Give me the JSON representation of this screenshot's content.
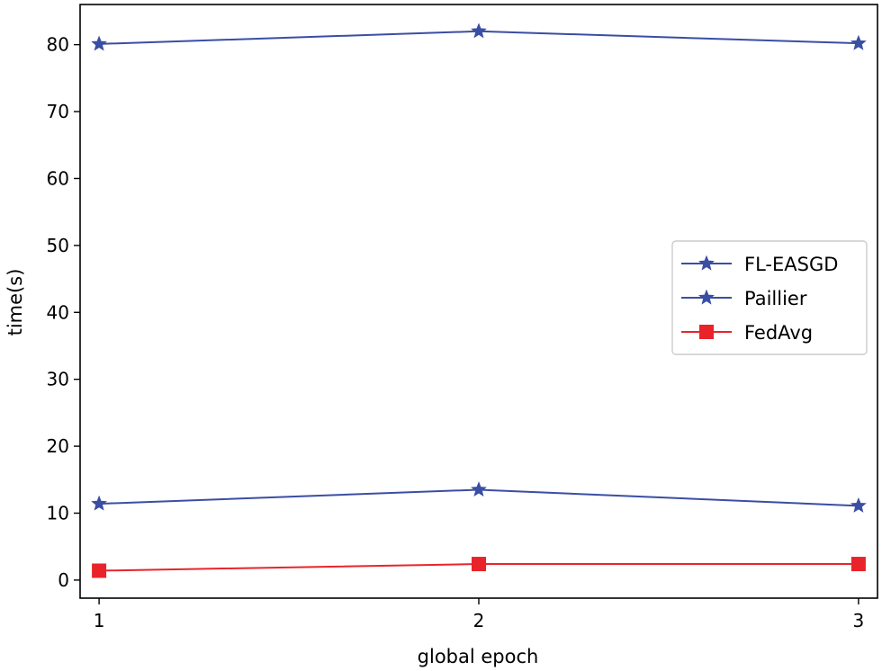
{
  "chart_data": {
    "type": "line",
    "title": "",
    "xlabel": "global epoch",
    "ylabel": "time(s)",
    "x": [
      1,
      2,
      3
    ],
    "xticks": [
      "1",
      "2",
      "3"
    ],
    "xlim": [
      0.95,
      3.05
    ],
    "yticks": [
      "0",
      "10",
      "20",
      "30",
      "40",
      "50",
      "60",
      "70",
      "80"
    ],
    "ylim": [
      -2.7,
      86
    ],
    "grid": false,
    "legend_position": "center-right",
    "series": [
      {
        "name": "FL-EASGD",
        "values": [
          80.1,
          82.0,
          80.2
        ],
        "color": "#3a4ea3",
        "marker": "star"
      },
      {
        "name": "Paillier",
        "values": [
          11.4,
          13.5,
          11.1
        ],
        "color": "#3a4ea3",
        "marker": "star"
      },
      {
        "name": "FedAvg",
        "values": [
          1.4,
          2.4,
          2.4
        ],
        "color": "#e8242a",
        "marker": "square"
      }
    ]
  }
}
